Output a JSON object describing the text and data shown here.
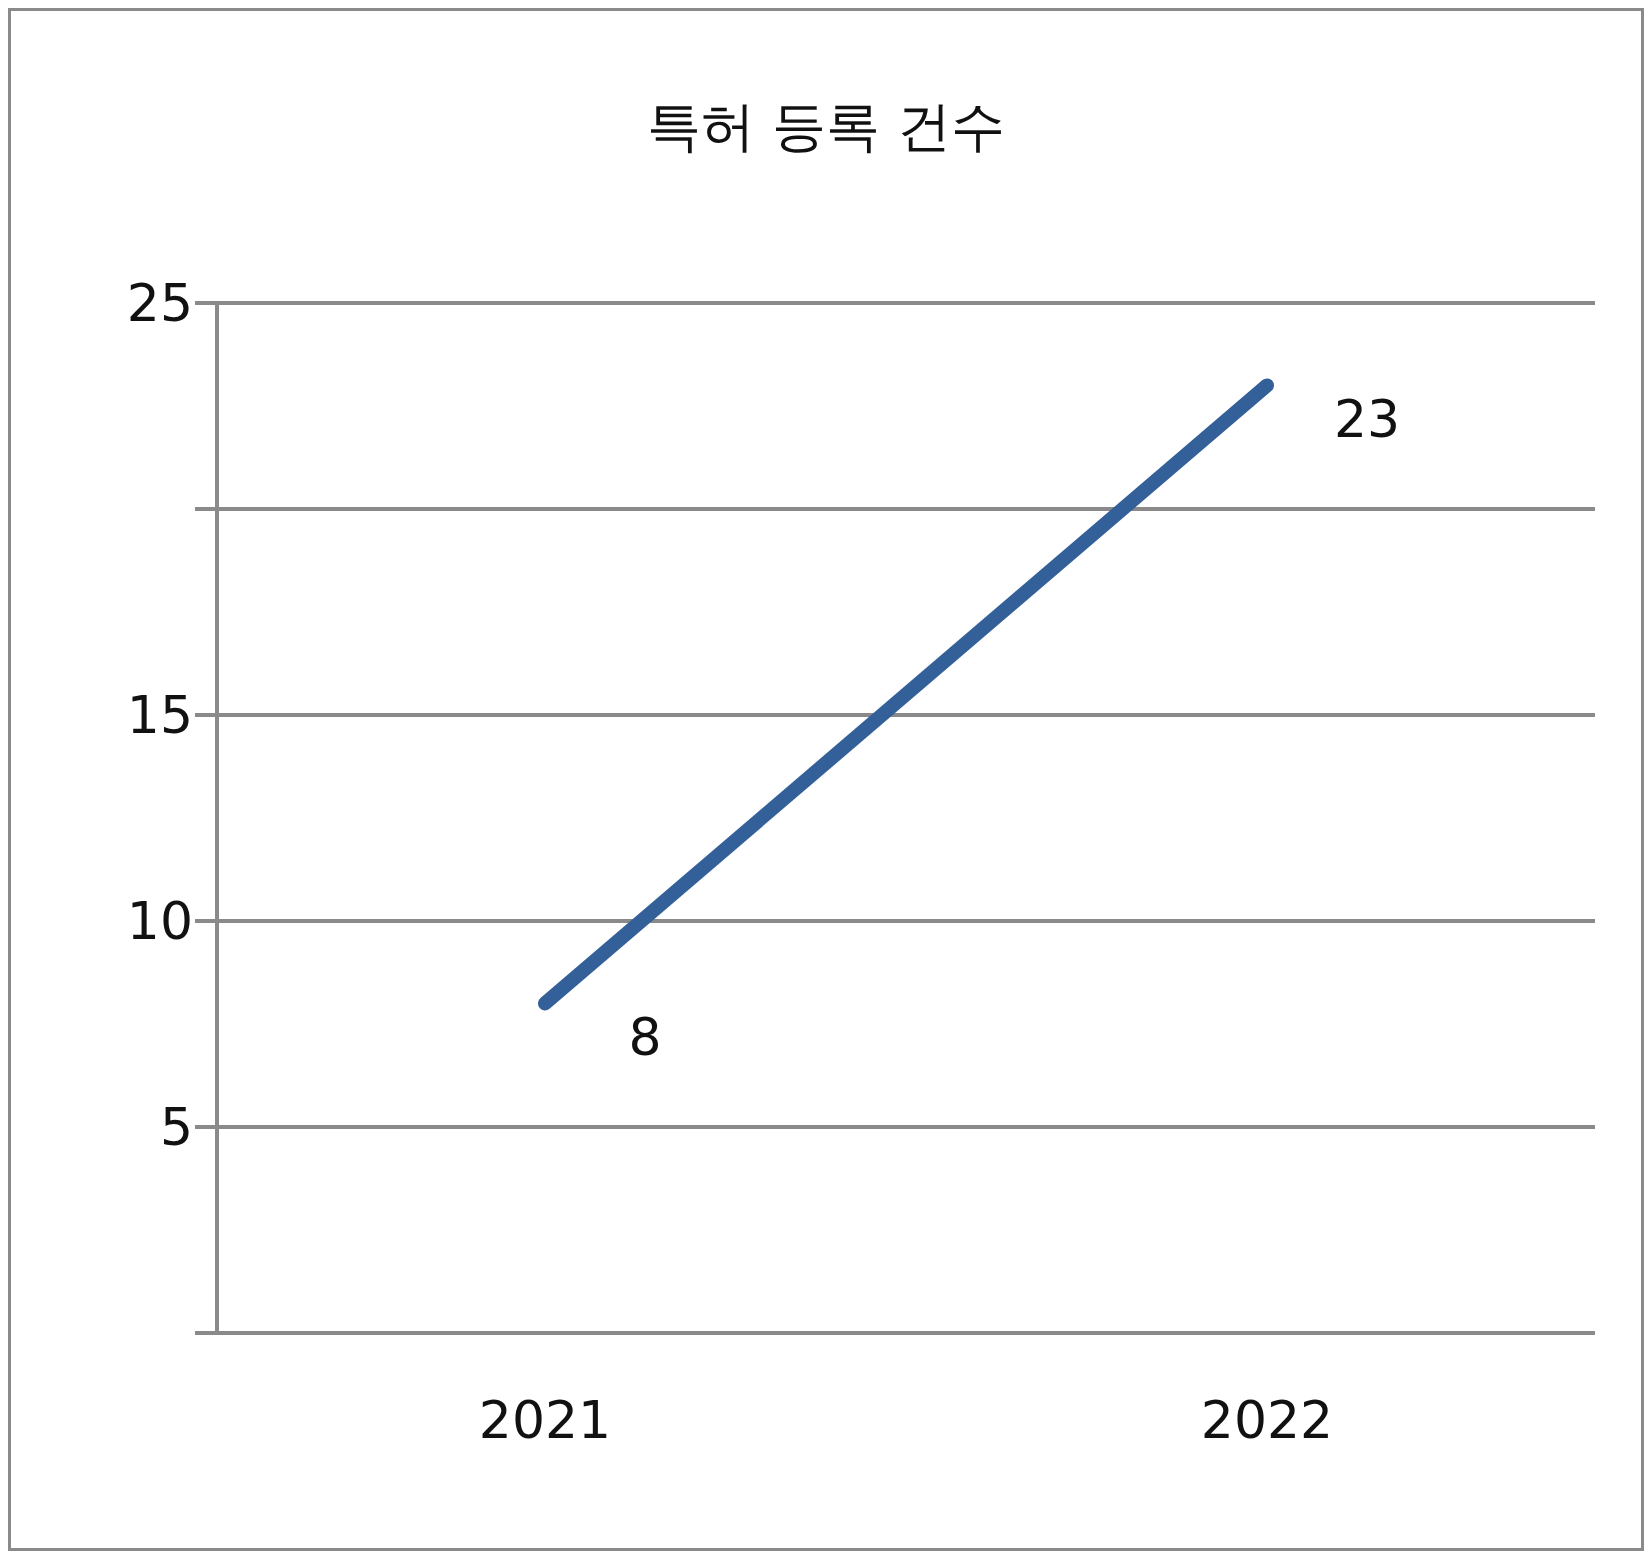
{
  "chart_data": {
    "type": "line",
    "title": "특허 등록 건수",
    "categories": [
      "2021",
      "2022"
    ],
    "series": [
      {
        "color": "#346099",
        "values": [
          8,
          23
        ]
      }
    ],
    "ylim": [
      0,
      25
    ],
    "yticks": [
      {
        "value": 0,
        "label": null
      },
      5,
      10,
      15,
      {
        "value": 20,
        "label": null
      },
      25
    ],
    "grid": "y",
    "legend": false,
    "marker": "none",
    "line_style": "solid",
    "data_labels": true
  }
}
